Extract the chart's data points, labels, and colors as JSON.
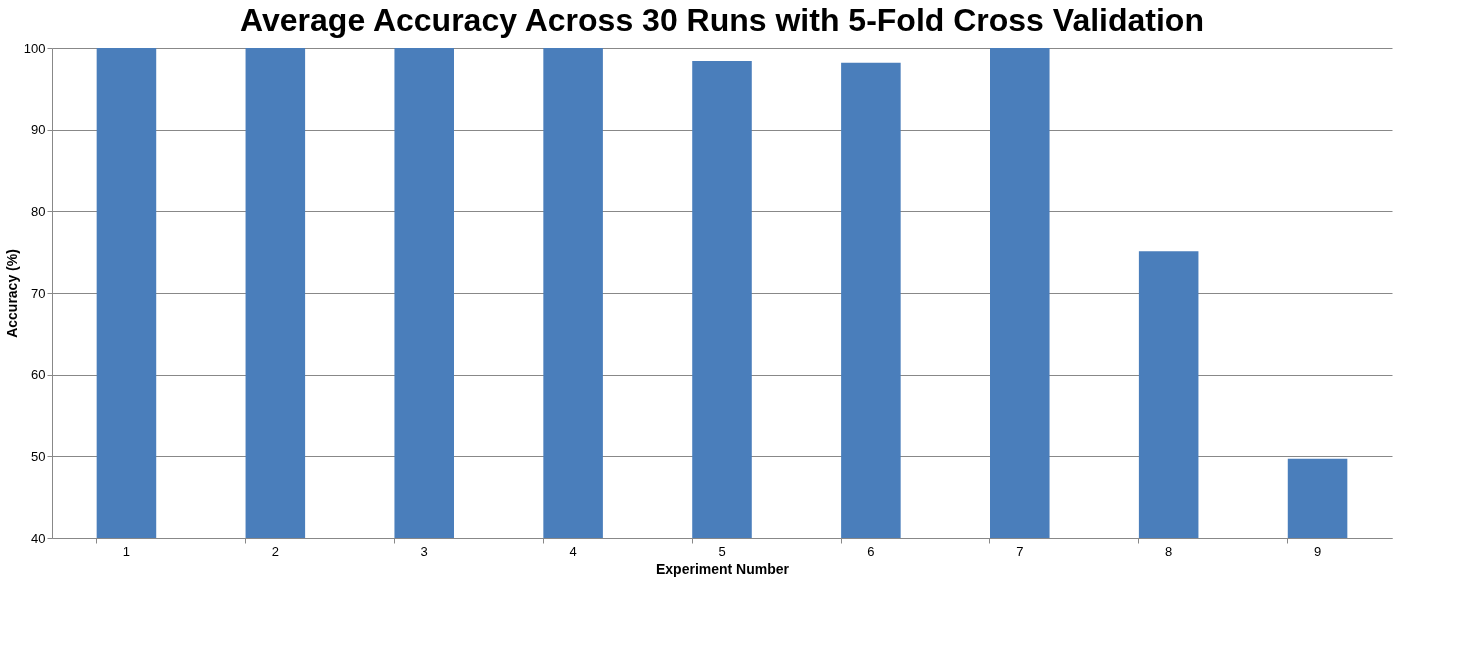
{
  "chart_data": {
    "type": "bar",
    "title": "Average Accuracy Across 30 Runs with 5-Fold Cross Validation",
    "xlabel": "Experiment Number",
    "ylabel": "Accuracy  (%)",
    "categories": [
      "1",
      "2",
      "3",
      "4",
      "5",
      "6",
      "7",
      "8",
      "9"
    ],
    "values": [
      100,
      100,
      100,
      100,
      98.4,
      98.2,
      100,
      75.1,
      49.7
    ],
    "color": "#4a7ebb",
    "ylim": [
      40,
      100
    ],
    "yticks": [
      40,
      50,
      60,
      70,
      80,
      90,
      100
    ],
    "grid": "y"
  }
}
